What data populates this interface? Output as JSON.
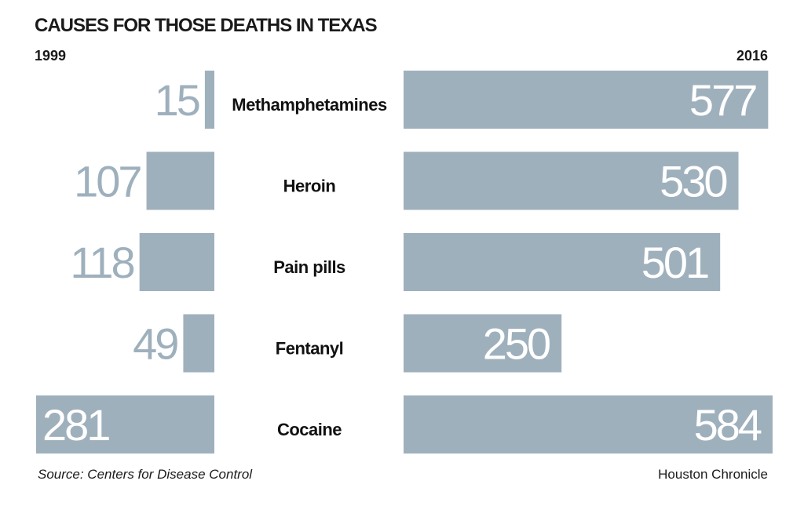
{
  "chart_data": {
    "type": "bar",
    "title": "CAUSES FOR THOSE DEATHS IN TEXAS",
    "categories": [
      "Methamphetamines",
      "Heroin",
      "Pain pills",
      "Fentanyl",
      "Cocaine"
    ],
    "series": [
      {
        "name": "1999",
        "values": [
          15,
          107,
          118,
          49,
          281
        ]
      },
      {
        "name": "2016",
        "values": [
          577,
          530,
          501,
          250,
          584
        ]
      }
    ],
    "source": "Source: Centers for Disease Control",
    "credit": "Houston Chronicle"
  },
  "colors": {
    "bar": "#9fb0bd",
    "value_on_bar": "#ffffff",
    "value_off_bar": "#9fb0bd"
  }
}
